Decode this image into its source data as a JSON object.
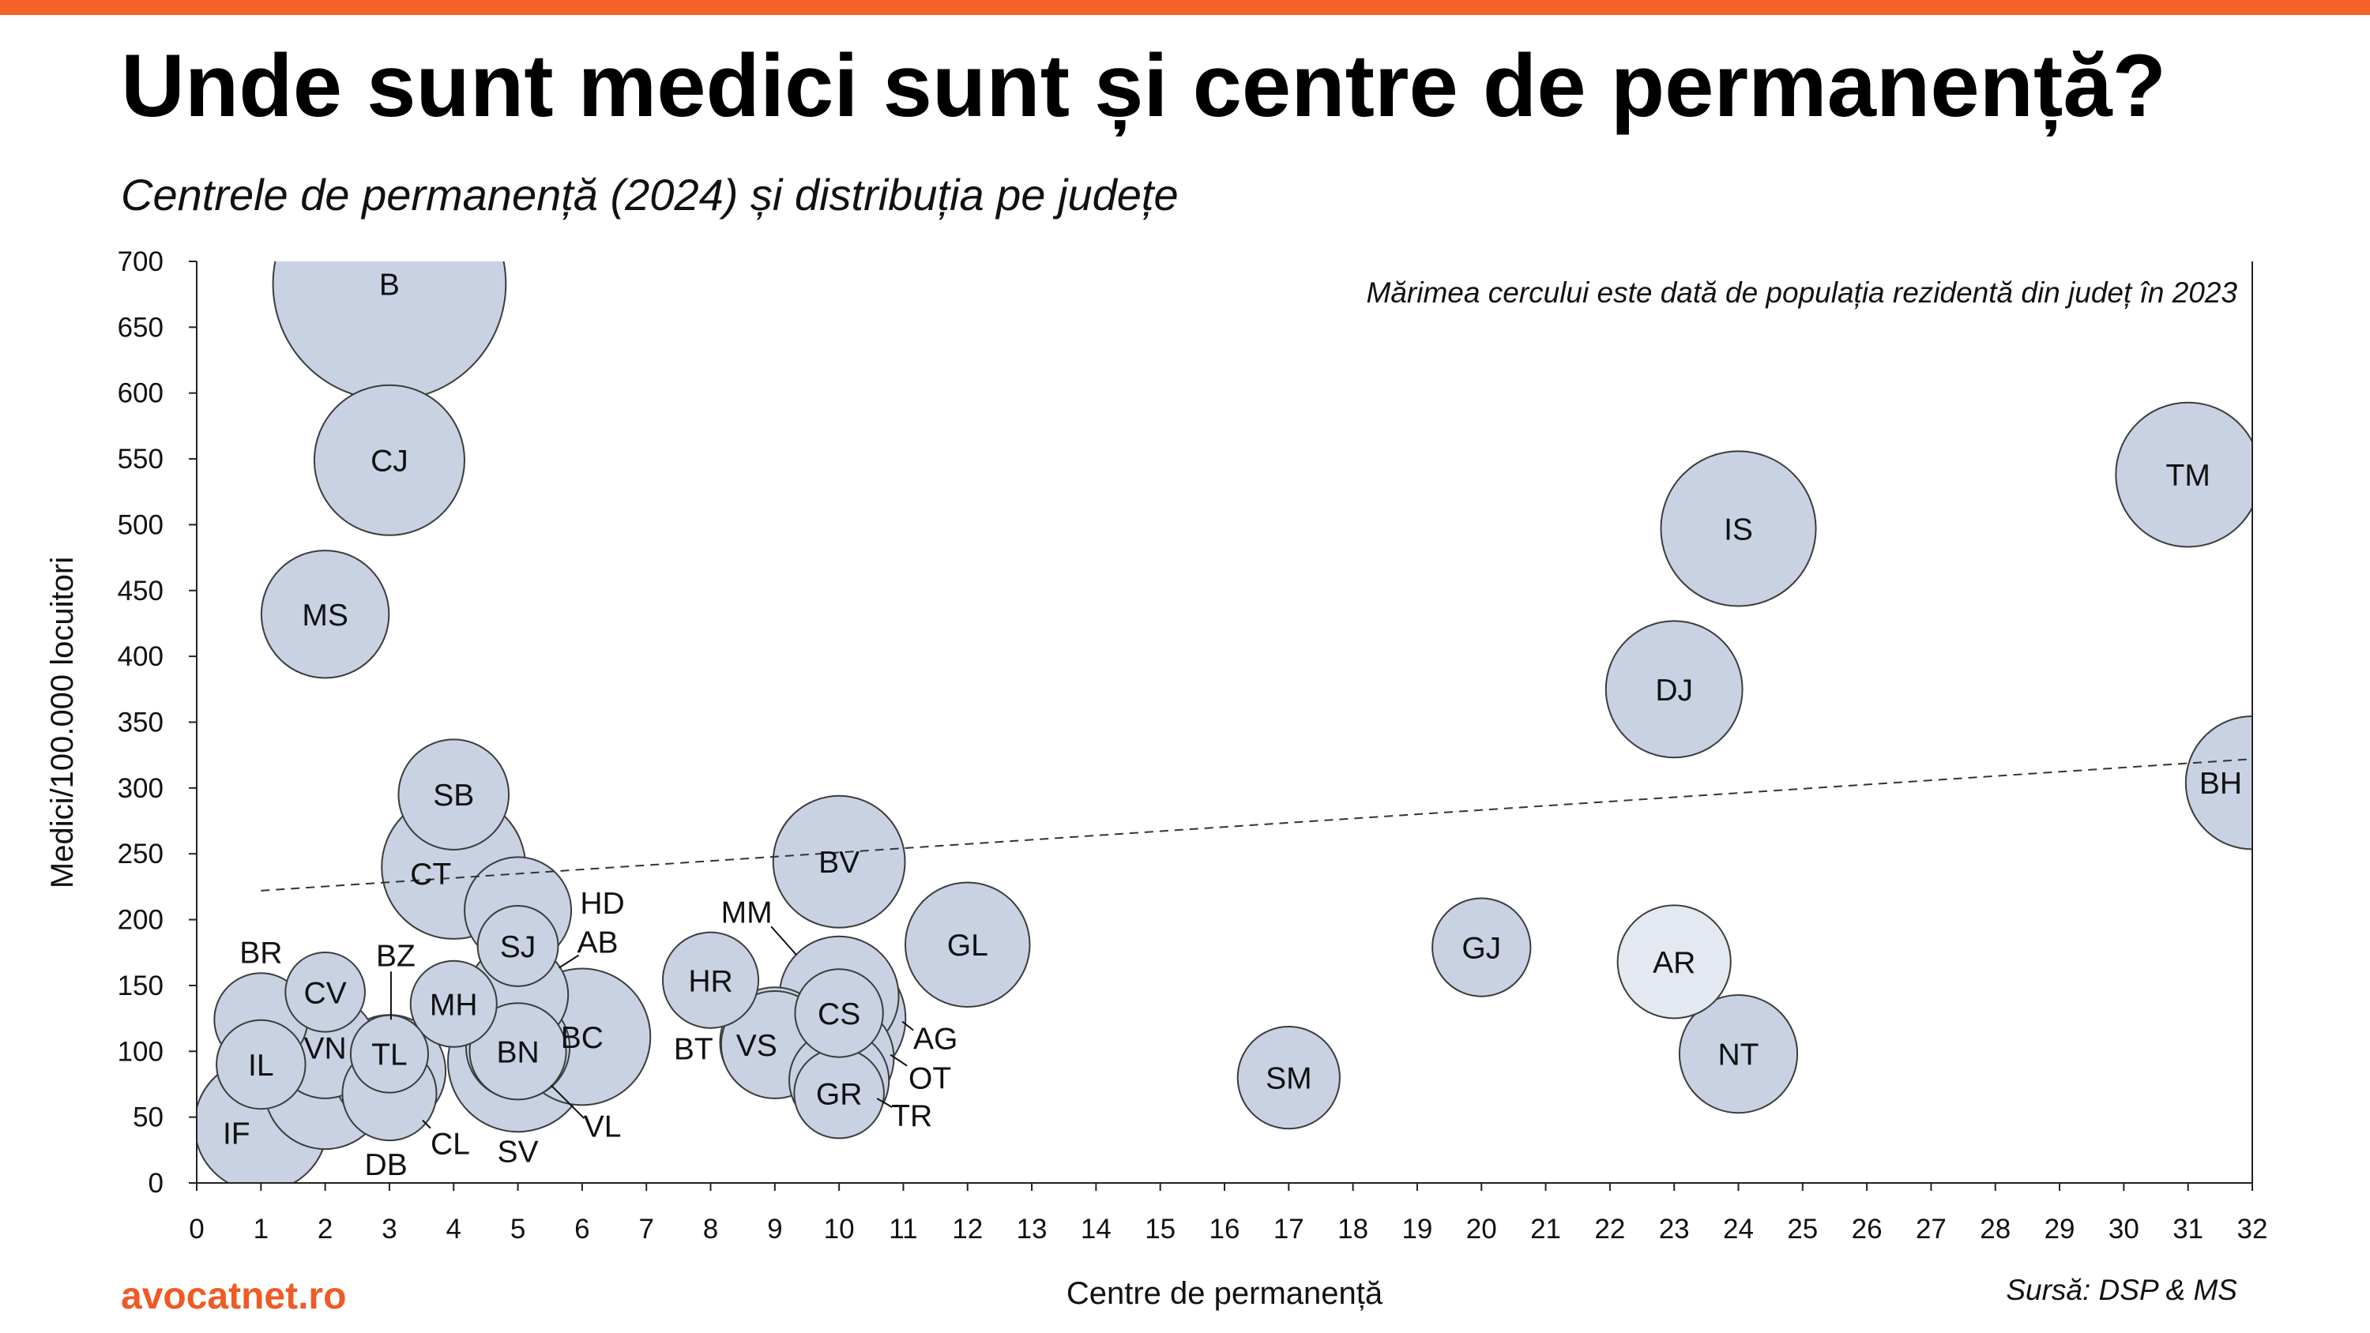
{
  "colors": {
    "accent": "#f4622a",
    "brand": "#ef5a25",
    "bubble_fill": "#c8d2e3",
    "bubble_highlight_fill": "#e3e8f1",
    "bubble_stroke": "#3c3c3c",
    "axis": "#222222",
    "trendline": "#333333"
  },
  "footer": {
    "brand": "avocatnet.ro",
    "source": "Sursă: DSP & MS"
  },
  "chart_data": {
    "type": "scatter",
    "title": "Unde sunt medici sunt și centre de permanență?",
    "subtitle": "Centrele de permanență (2024) și distribuția pe județe",
    "size_note": "Mărimea cercului este dată de populația rezidentă din județ în 2023",
    "xlabel": "Centre de permanență",
    "ylabel": "Medici/100.000 locuitori",
    "xlim": [
      0,
      32
    ],
    "ylim": [
      0,
      700
    ],
    "xticks": [
      0,
      1,
      2,
      3,
      4,
      5,
      6,
      7,
      8,
      9,
      10,
      11,
      12,
      13,
      14,
      15,
      16,
      17,
      18,
      19,
      20,
      21,
      22,
      23,
      24,
      25,
      26,
      27,
      28,
      29,
      30,
      31,
      32
    ],
    "yticks": [
      0,
      50,
      100,
      150,
      200,
      250,
      300,
      350,
      400,
      450,
      500,
      550,
      600,
      650,
      700
    ],
    "grid": false,
    "size_variable": "population_thousands",
    "points": [
      {
        "label": "B",
        "x": 3,
        "y": 683,
        "population_thousands": 1716
      },
      {
        "label": "CJ",
        "x": 3,
        "y": 549,
        "population_thousands": 714
      },
      {
        "label": "MS",
        "x": 2,
        "y": 432,
        "population_thousands": 515
      },
      {
        "label": "TM",
        "x": 31,
        "y": 538,
        "population_thousands": 660
      },
      {
        "label": "IS",
        "x": 24,
        "y": 497,
        "population_thousands": 760
      },
      {
        "label": "DJ",
        "x": 23,
        "y": 375,
        "population_thousands": 590
      },
      {
        "label": "BH",
        "x": 32,
        "y": 304,
        "population_thousands": 560
      },
      {
        "label": "SB",
        "x": 4,
        "y": 295,
        "population_thousands": 385
      },
      {
        "label": "CT",
        "x": 4,
        "y": 240,
        "population_thousands": 655
      },
      {
        "label": "BV",
        "x": 10,
        "y": 244,
        "population_thousands": 550
      },
      {
        "label": "HD",
        "x": 5,
        "y": 207,
        "population_thousands": 360
      },
      {
        "label": "SJ",
        "x": 5,
        "y": 180,
        "population_thousands": 205
      },
      {
        "label": "AB",
        "x": 5,
        "y": 143,
        "population_thousands": 320
      },
      {
        "label": "GL",
        "x": 12,
        "y": 181,
        "population_thousands": 490
      },
      {
        "label": "GJ",
        "x": 20,
        "y": 179,
        "population_thousands": 305
      },
      {
        "label": "AR",
        "x": 23,
        "y": 168,
        "population_thousands": 405,
        "highlight": true
      },
      {
        "label": "NT",
        "x": 24,
        "y": 98,
        "population_thousands": 440
      },
      {
        "label": "SM",
        "x": 17,
        "y": 80,
        "population_thousands": 330
      },
      {
        "label": "BR",
        "x": 1,
        "y": 124,
        "population_thousands": 275
      },
      {
        "label": "CV",
        "x": 2,
        "y": 145,
        "population_thousands": 200
      },
      {
        "label": "VN",
        "x": 2,
        "y": 103,
        "population_thousands": 330
      },
      {
        "label": "IL",
        "x": 1,
        "y": 90,
        "population_thousands": 250
      },
      {
        "label": "IF",
        "x": 1,
        "y": 44,
        "population_thousands": 560
      },
      {
        "label": "DB",
        "x": 2,
        "y": 72,
        "population_thousands": 470
      },
      {
        "label": "BZ",
        "x": 3,
        "y": 85,
        "population_thousands": 400
      },
      {
        "label": "TL",
        "x": 3,
        "y": 98,
        "population_thousands": 190
      },
      {
        "label": "CL",
        "x": 3,
        "y": 68,
        "population_thousands": 280
      },
      {
        "label": "MH",
        "x": 4,
        "y": 136,
        "population_thousands": 235
      },
      {
        "label": "BN",
        "x": 5,
        "y": 100,
        "population_thousands": 295
      },
      {
        "label": "SV",
        "x": 5,
        "y": 92,
        "population_thousands": 620
      },
      {
        "label": "VL",
        "x": 5,
        "y": 103,
        "population_thousands": 340
      },
      {
        "label": "BC",
        "x": 6,
        "y": 111,
        "population_thousands": 590
      },
      {
        "label": "HR",
        "x": 8,
        "y": 154,
        "population_thousands": 290
      },
      {
        "label": "BT",
        "x": 9,
        "y": 107,
        "population_thousands": 380
      },
      {
        "label": "VS",
        "x": 9,
        "y": 105,
        "population_thousands": 365
      },
      {
        "label": "MM",
        "x": 10,
        "y": 142,
        "population_thousands": 450
      },
      {
        "label": "CS",
        "x": 10,
        "y": 129,
        "population_thousands": 245
      },
      {
        "label": "AG",
        "x": 10,
        "y": 125,
        "population_thousands": 560
      },
      {
        "label": "OT",
        "x": 10,
        "y": 95,
        "population_thousands": 380
      },
      {
        "label": "GR",
        "x": 10,
        "y": 68,
        "population_thousands": 255
      },
      {
        "label": "TR",
        "x": 10,
        "y": 78,
        "population_thousands": 315
      }
    ],
    "trendline": {
      "style": "dashed",
      "x": [
        1,
        32
      ],
      "y": [
        222,
        322
      ]
    }
  }
}
